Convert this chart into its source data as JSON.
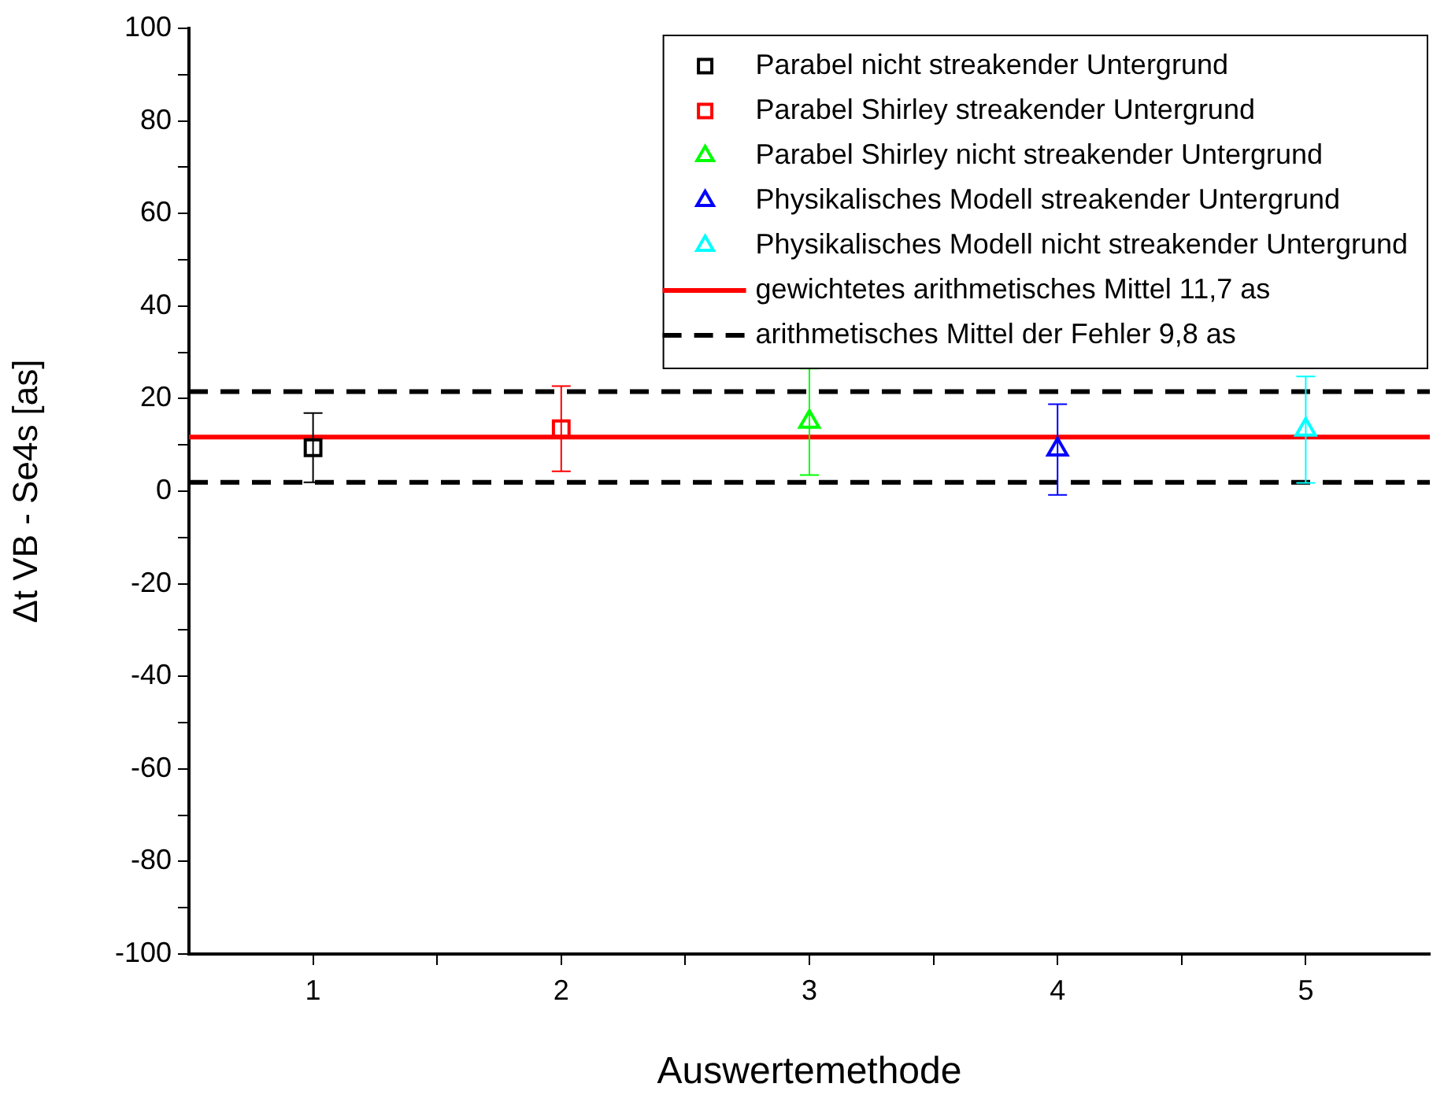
{
  "chart_data": {
    "type": "scatter",
    "xlabel": "Auswertemethode",
    "ylabel": "Δt VB - Se4s [as]",
    "xlim": [
      0.5,
      5.5
    ],
    "xticks": [
      1,
      {
        "value": 1.5,
        "label": null
      },
      2,
      {
        "value": 2.5,
        "label": null
      },
      3,
      {
        "value": 3.5,
        "label": null
      },
      4,
      {
        "value": 4.5,
        "label": null
      },
      5
    ],
    "ylim": [
      -100,
      100
    ],
    "yticks": [
      -100,
      {
        "value": -90,
        "label": null
      },
      -80,
      {
        "value": -70,
        "label": null
      },
      -60,
      {
        "value": -50,
        "label": null
      },
      -40,
      {
        "value": -30,
        "label": null
      },
      -20,
      {
        "value": -10,
        "label": null
      },
      0,
      {
        "value": 10,
        "label": null
      },
      20,
      {
        "value": 30,
        "label": null
      },
      40,
      {
        "value": 50,
        "label": null
      },
      60,
      {
        "value": 70,
        "label": null
      },
      80,
      {
        "value": 90,
        "label": null
      },
      100
    ],
    "grid": false,
    "legend": "top right",
    "series": [
      {
        "name": "Parabel nicht streakender Untergrund",
        "color": "#000000",
        "marker": "square",
        "x": [
          1
        ],
        "values": [
          9.4
        ],
        "errors": [
          7.5
        ]
      },
      {
        "name": "Parabel Shirley streakender Untergrund",
        "color": "#ff0000",
        "marker": "square",
        "x": [
          2
        ],
        "values": [
          13.5
        ],
        "errors": [
          9.2
        ]
      },
      {
        "name": "Parabel Shirley nicht streakender Untergrund",
        "color": "#00ff00",
        "marker": "triangle",
        "x": [
          3
        ],
        "values": [
          15
        ],
        "errors": [
          11.5
        ]
      },
      {
        "name": "Physikalisches Modell streakender Untergrund",
        "color": "#0000ff",
        "marker": "triangle",
        "x": [
          4
        ],
        "values": [
          9
        ],
        "errors": [
          9.8
        ]
      },
      {
        "name": "Physikalisches Modell nicht streakender Untergrund",
        "color": "#00ffff",
        "marker": "triangle",
        "x": [
          5
        ],
        "values": [
          13.3
        ],
        "errors": [
          11.5
        ]
      }
    ],
    "ref_lines": [
      {
        "axis": "y",
        "value": 11.7,
        "label": "gewichtetes arithmetisches Mittel 11,7 as",
        "color": "#ff0000",
        "line_style": "solid"
      },
      {
        "axis": "y",
        "value": 21.5,
        "label": "arithmetisches Mittel der Fehler 9,8 as",
        "color": "#000000",
        "line_style": "dashed"
      },
      {
        "axis": "y",
        "value": 1.9,
        "label": null,
        "color": "#000000",
        "line_style": "dashed"
      }
    ]
  }
}
